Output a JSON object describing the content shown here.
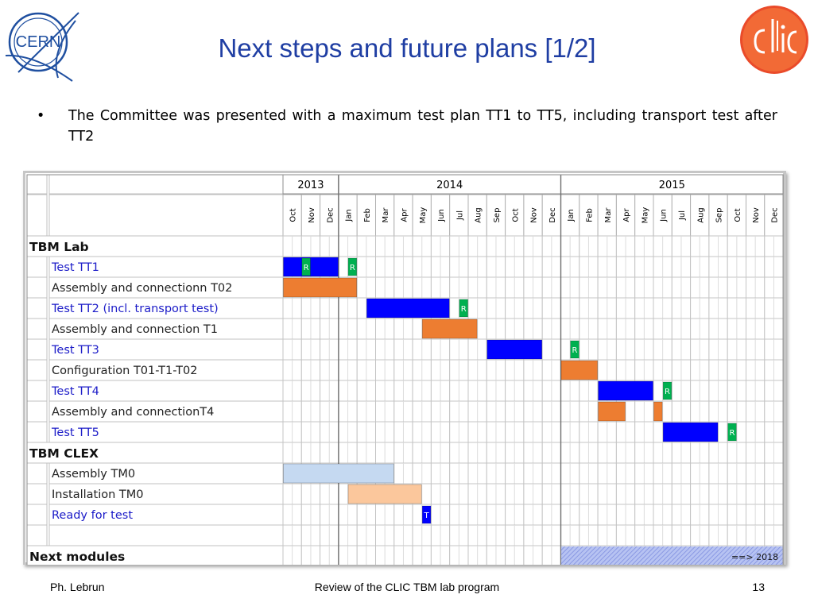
{
  "slide": {
    "title": "Next steps and future plans [1/2]",
    "bullet_marker": "•",
    "bullet_text": "The Committee was presented with a maximum test plan TT1 to TT5, including transport test after TT2",
    "footer_left": "Ph. Lebrun",
    "footer_center": "Review of the CLIC TBM lab program",
    "footer_right": "13",
    "logo_left_text": "CERN",
    "logo_right_icon": "clic-logo"
  },
  "gantt": {
    "years": [
      {
        "label": "2013",
        "months": [
          "Oct",
          "Nov",
          "Dec"
        ]
      },
      {
        "label": "2014",
        "months": [
          "Jan",
          "Feb",
          "Mar",
          "Apr",
          "May",
          "Jun",
          "Jul",
          "Aug",
          "Sep",
          "Oct",
          "Nov",
          "Dec"
        ]
      },
      {
        "label": "2015",
        "months": [
          "Jan",
          "Feb",
          "Mar",
          "Apr",
          "May",
          "Jun",
          "Jul",
          "Aug",
          "Sep",
          "Oct",
          "Nov",
          "Dec"
        ]
      }
    ],
    "colors": {
      "test": "#0000ff",
      "assembly": "#ed7d31",
      "review": "#00b050",
      "clex_assembly": "#c5d9f1",
      "installation": "#fbc79c",
      "ready": "#0000ff",
      "next_modules": "#aab8ee",
      "test_label": "#1c1cc8",
      "assembly_label": "#222222"
    },
    "rows": [
      {
        "label": "TBM Lab",
        "kind": "section",
        "bars": []
      },
      {
        "label": "Test TT1",
        "kind": "test",
        "bars": [
          {
            "start": 0,
            "end": 3,
            "type": "test"
          },
          {
            "start": 1,
            "end": 1.5,
            "type": "review",
            "mark": "R"
          },
          {
            "start": 3.5,
            "end": 4,
            "type": "review",
            "mark": "R"
          }
        ]
      },
      {
        "label": "Assembly and connectionn T02",
        "kind": "task",
        "bars": [
          {
            "start": 0,
            "end": 4,
            "type": "assembly"
          }
        ]
      },
      {
        "label": "Test TT2 (incl. transport test)",
        "kind": "test",
        "bars": [
          {
            "start": 4.5,
            "end": 9,
            "type": "test"
          },
          {
            "start": 9.5,
            "end": 10,
            "type": "review",
            "mark": "R"
          }
        ]
      },
      {
        "label": "Assembly and connection T1",
        "kind": "task",
        "bars": [
          {
            "start": 7.5,
            "end": 10.5,
            "type": "assembly"
          }
        ]
      },
      {
        "label": "Test TT3",
        "kind": "test",
        "bars": [
          {
            "start": 11,
            "end": 14,
            "type": "test"
          },
          {
            "start": 15.5,
            "end": 16,
            "type": "review",
            "mark": "R"
          }
        ]
      },
      {
        "label": "Configuration T01-T1-T02",
        "kind": "task",
        "bars": [
          {
            "start": 15,
            "end": 17,
            "type": "assembly"
          }
        ]
      },
      {
        "label": "Test TT4",
        "kind": "test",
        "bars": [
          {
            "start": 17,
            "end": 20,
            "type": "test"
          },
          {
            "start": 20.5,
            "end": 21,
            "type": "review",
            "mark": "R"
          }
        ]
      },
      {
        "label": "Assembly and connectionT4",
        "kind": "task",
        "bars": [
          {
            "start": 17,
            "end": 18.5,
            "type": "assembly"
          },
          {
            "start": 20,
            "end": 20.5,
            "type": "assembly"
          }
        ]
      },
      {
        "label": "Test TT5",
        "kind": "test",
        "bars": [
          {
            "start": 20.5,
            "end": 23.5,
            "type": "test"
          },
          {
            "start": 24,
            "end": 24.5,
            "type": "review",
            "mark": "R"
          }
        ]
      },
      {
        "label": "TBM CLEX",
        "kind": "section",
        "bars": []
      },
      {
        "label": "Assembly TM0",
        "kind": "task",
        "bars": [
          {
            "start": 0,
            "end": 6,
            "type": "clex_assembly"
          }
        ]
      },
      {
        "label": "Installation TM0",
        "kind": "task",
        "bars": [
          {
            "start": 3.5,
            "end": 7.5,
            "type": "installation"
          }
        ]
      },
      {
        "label": "Ready for test",
        "kind": "test",
        "bars": [
          {
            "start": 7.5,
            "end": 8,
            "type": "ready",
            "mark": "T"
          }
        ]
      },
      {
        "label": "",
        "kind": "blank",
        "bars": []
      },
      {
        "label": "Next modules",
        "kind": "section",
        "bars": [
          {
            "start": 15,
            "end": 27,
            "type": "next_modules",
            "note": "==> 2018"
          }
        ]
      }
    ]
  }
}
